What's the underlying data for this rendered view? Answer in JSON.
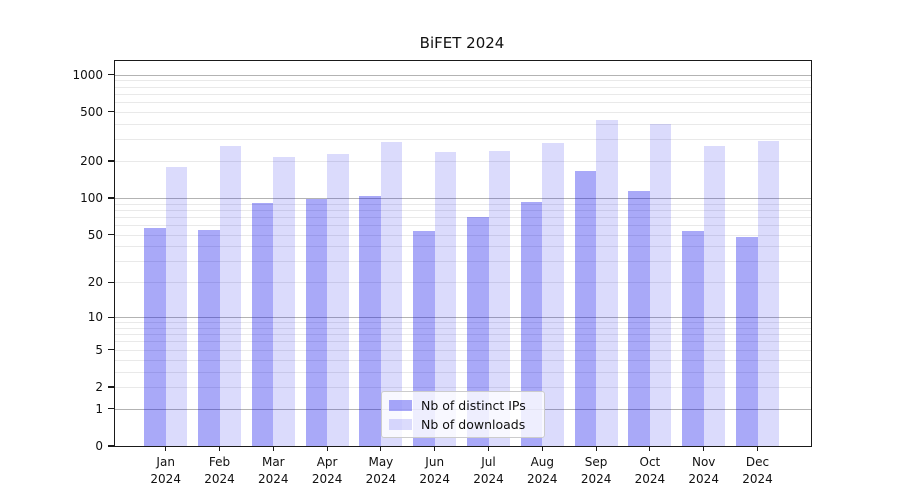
{
  "title": "BiFET 2024",
  "legend": {
    "items": [
      {
        "label": "Nb of distinct IPs",
        "key": "ips"
      },
      {
        "label": "Nb of downloads",
        "key": "downloads"
      }
    ]
  },
  "colors": {
    "ips": "rgba(10,10,235,0.35)",
    "downloads": "rgba(10,10,235,0.145)",
    "grid_major": "#b3b3b3",
    "grid_minor": "#e9e9e9",
    "spine": "#1a1a1a"
  },
  "axes": {
    "y_tick_labels": [
      "0",
      "1",
      "2",
      "5",
      "10",
      "20",
      "50",
      "100",
      "200",
      "500",
      "1000"
    ],
    "x_months": [
      "Jan",
      "Feb",
      "Mar",
      "Apr",
      "May",
      "Jun",
      "Jul",
      "Aug",
      "Sep",
      "Oct",
      "Nov",
      "Dec"
    ],
    "x_year": "2024"
  },
  "chart_data": {
    "type": "bar",
    "title": "BiFET 2024",
    "xlabel": "",
    "ylabel": "",
    "yscale": "log1p",
    "ylim": [
      0,
      1290
    ],
    "yticks": [
      0,
      1,
      2,
      5,
      10,
      20,
      50,
      100,
      200,
      500,
      1000
    ],
    "grid": "on",
    "legend_position": "lower center",
    "categories": [
      "Jan 2024",
      "Feb 2024",
      "Mar 2024",
      "Apr 2024",
      "May 2024",
      "Jun 2024",
      "Jul 2024",
      "Aug 2024",
      "Sep 2024",
      "Oct 2024",
      "Nov 2024",
      "Dec 2024"
    ],
    "series": [
      {
        "name": "Nb of distinct IPs",
        "values": [
          57,
          55,
          91,
          98,
          104,
          54,
          70,
          92,
          165,
          115,
          54,
          48
        ]
      },
      {
        "name": "Nb of downloads",
        "values": [
          180,
          265,
          215,
          230,
          283,
          235,
          242,
          278,
          430,
          400,
          265,
          290
        ]
      }
    ]
  }
}
